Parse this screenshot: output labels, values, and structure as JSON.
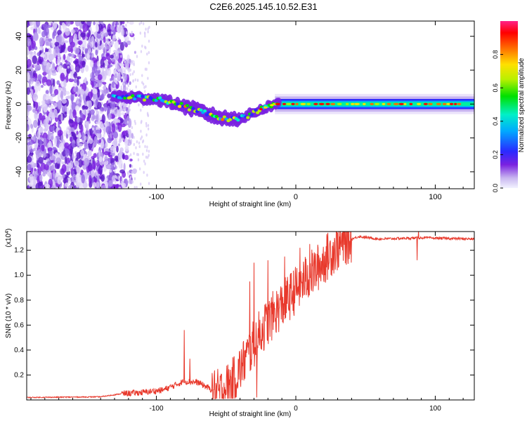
{
  "title": "C2E6.2025.145.10.52.E31",
  "chart_data": [
    {
      "type": "heatmap",
      "xlabel": "Height of straight line (km)",
      "ylabel": "Frequency (Hz)",
      "xlim": [
        -193,
        128
      ],
      "ylim": [
        -50,
        49
      ],
      "x_ticks": [
        -100,
        0,
        100
      ],
      "x_tick_labels": [
        "-100",
        "0",
        "100"
      ],
      "y_ticks": [
        -40,
        -20,
        0,
        20,
        40
      ],
      "y_tick_labels": [
        "-40",
        "-20",
        "0",
        "20",
        "40"
      ],
      "colorbar": {
        "label": "Normalized spectral amplitude",
        "range": [
          0,
          1
        ],
        "ticks": [
          0.0,
          0.2,
          0.4,
          0.6,
          0.8
        ],
        "tick_labels": [
          "0.0",
          "0.2",
          "0.4",
          "0.6",
          "0.8"
        ]
      },
      "ridge": [
        {
          "x": -193,
          "f": 5
        },
        {
          "x": -140,
          "f": 5
        },
        {
          "x": -120,
          "f": 4
        },
        {
          "x": -100,
          "f": 3
        },
        {
          "x": -85,
          "f": 0
        },
        {
          "x": -70,
          "f": -4
        },
        {
          "x": -55,
          "f": -8
        },
        {
          "x": -45,
          "f": -9
        },
        {
          "x": -35,
          "f": -7
        },
        {
          "x": -25,
          "f": -3
        },
        {
          "x": -15,
          "f": 0
        },
        {
          "x": 0,
          "f": 0
        },
        {
          "x": 128,
          "f": 0
        }
      ],
      "grid": false
    },
    {
      "type": "line",
      "xlabel": "Height of straight line (km)",
      "ylabel": "SNR (10 * v/v)",
      "y_multiplier_label": "(x10",
      "y_multiplier_exp": "4",
      "xlim": [
        -193,
        128
      ],
      "ylim": [
        0,
        1.35
      ],
      "x_ticks": [
        -100,
        0,
        100
      ],
      "x_tick_labels": [
        "-100",
        "0",
        "100"
      ],
      "y_ticks": [
        0.2,
        0.4,
        0.6,
        0.8,
        1.0,
        1.2
      ],
      "y_tick_labels": [
        "0.2",
        "0.4",
        "0.6",
        "0.8",
        "1.0",
        "1.2"
      ],
      "series": [
        {
          "color": "#e8392c",
          "profile": [
            {
              "x": -193,
              "y": 0.02
            },
            {
              "x": -140,
              "y": 0.025
            },
            {
              "x": -125,
              "y": 0.05
            },
            {
              "x": -110,
              "y": 0.06
            },
            {
              "x": -95,
              "y": 0.08
            },
            {
              "x": -80,
              "y": 0.15
            },
            {
              "x": -70,
              "y": 0.14
            },
            {
              "x": -55,
              "y": 0.05
            },
            {
              "x": -45,
              "y": 0.15
            },
            {
              "x": -35,
              "y": 0.35
            },
            {
              "x": -25,
              "y": 0.55
            },
            {
              "x": -15,
              "y": 0.7
            },
            {
              "x": -5,
              "y": 0.82
            },
            {
              "x": 5,
              "y": 0.95
            },
            {
              "x": 15,
              "y": 1.05
            },
            {
              "x": 25,
              "y": 1.18
            },
            {
              "x": 35,
              "y": 1.27
            },
            {
              "x": 45,
              "y": 1.31
            },
            {
              "x": 60,
              "y": 1.29
            },
            {
              "x": 90,
              "y": 1.3
            },
            {
              "x": 128,
              "y": 1.29
            }
          ],
          "spikes": [
            {
              "x": -80,
              "y": 0.56
            },
            {
              "x": -76,
              "y": 0.33
            },
            {
              "x": -33,
              "y": 0.95
            },
            {
              "x": -30,
              "y": 1.1
            },
            {
              "x": -20,
              "y": 1.12
            },
            {
              "x": -8,
              "y": 1.15
            },
            {
              "x": 3,
              "y": 1.22
            },
            {
              "x": 10,
              "y": 1.25
            },
            {
              "x": 88,
              "y": 1.36
            }
          ],
          "dips": [
            {
              "x": -28,
              "y": 0.02
            },
            {
              "x": 87,
              "y": 1.12
            }
          ]
        }
      ],
      "grid": false
    }
  ]
}
